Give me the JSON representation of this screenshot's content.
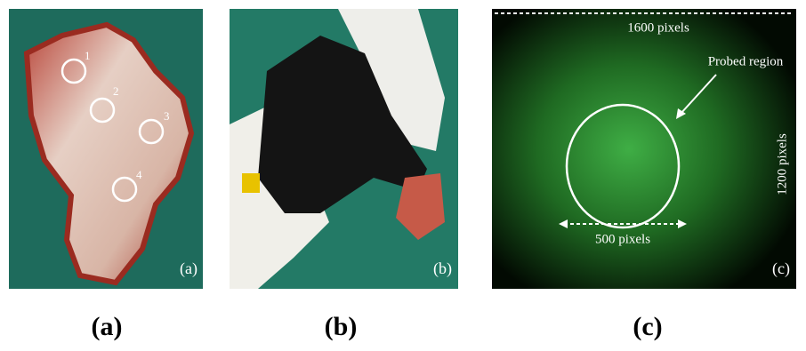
{
  "panels": [
    {
      "labels": [
        "1",
        "2",
        "3",
        "4"
      ],
      "tag": "(a)",
      "caption": "(a)"
    },
    {
      "tag": "(b)",
      "caption": "(b)"
    },
    {
      "top_label": "1600 pixels",
      "region_label": "Probed region",
      "side_label": "1200 pixels",
      "width_label": "500 pixels",
      "tag": "(c)",
      "caption": "(c)"
    }
  ]
}
